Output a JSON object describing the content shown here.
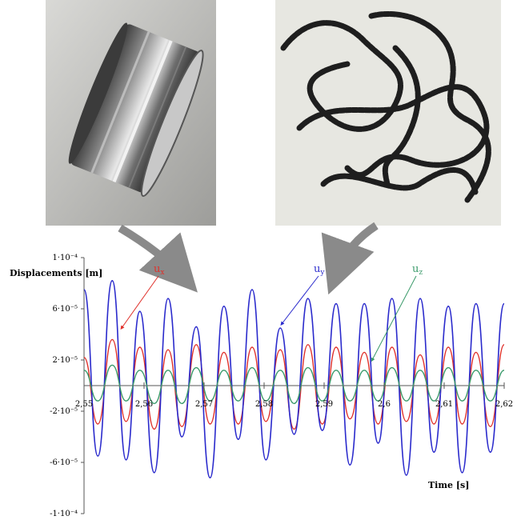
{
  "photos": {
    "left": {
      "description_icon": "machined-cylindrical-workpiece-photo"
    },
    "right": {
      "description_icon": "metal-chips-photo"
    }
  },
  "colors": {
    "ux": "#e0302a",
    "uy": "#2a2acc",
    "uz": "#3a9a6a",
    "axis": "#555555",
    "arrow": "#8a8a8a"
  },
  "chart_data": {
    "type": "line",
    "ylabel": "Displacements [m]",
    "xlabel": "Time  [s]",
    "xlim": [
      2.55,
      2.62
    ],
    "ylim": [
      -0.0001,
      0.0001
    ],
    "x_ticks": [
      "2,55",
      "2,56",
      "2,57",
      "2,58",
      "2,59",
      "2,6",
      "2,61",
      "2,62"
    ],
    "y_ticks": [
      "1·10⁻⁴",
      "6·10⁻⁵",
      "2·10⁻⁵",
      "-2·10⁻⁵",
      "-6·10⁻⁵",
      "-1·10⁻⁴"
    ],
    "y_tick_values": [
      0.0001,
      6e-05,
      2e-05,
      -2e-05,
      -6e-05,
      -0.0001
    ],
    "grid": false,
    "series": [
      {
        "name": "ux",
        "label_main": "u",
        "label_sub": "x",
        "color": "#e0302a",
        "x": [
          2.55,
          2.5523,
          2.5547,
          2.557,
          2.5593,
          2.5617,
          2.564,
          2.5663,
          2.5687,
          2.571,
          2.5733,
          2.5757,
          2.578,
          2.5803,
          2.5827,
          2.585,
          2.5873,
          2.5897,
          2.592,
          2.5943,
          2.5967,
          2.599,
          2.6013,
          2.6037,
          2.606,
          2.6083,
          2.6107,
          2.613,
          2.6153,
          2.6177,
          2.62
        ],
        "y": [
          2.2e-05,
          -3e-05,
          3.6e-05,
          -2.8e-05,
          3e-05,
          -3.4e-05,
          2.8e-05,
          -3.2e-05,
          3.2e-05,
          -3e-05,
          2.6e-05,
          -3e-05,
          3e-05,
          -2.8e-05,
          2.8e-05,
          -3.4e-05,
          3.2e-05,
          -3e-05,
          3e-05,
          -2.6e-05,
          2.6e-05,
          -3e-05,
          3e-05,
          -2.8e-05,
          2.4e-05,
          -3e-05,
          3e-05,
          -3e-05,
          2.6e-05,
          -3.2e-05,
          3.2e-05
        ]
      },
      {
        "name": "uy",
        "label_main": "u",
        "label_sub": "y",
        "color": "#2a2acc",
        "x": [
          2.55,
          2.5523,
          2.5547,
          2.557,
          2.5593,
          2.5617,
          2.564,
          2.5663,
          2.5687,
          2.571,
          2.5733,
          2.5757,
          2.578,
          2.5803,
          2.5827,
          2.585,
          2.5873,
          2.5897,
          2.592,
          2.5943,
          2.5967,
          2.599,
          2.6013,
          2.6037,
          2.606,
          2.6083,
          2.6107,
          2.613,
          2.6153,
          2.6177,
          2.62
        ],
        "y": [
          7.5e-05,
          -5.5e-05,
          8.2e-05,
          -5.8e-05,
          5.8e-05,
          -6.8e-05,
          6.8e-05,
          -4e-05,
          4.6e-05,
          -7.2e-05,
          6.2e-05,
          -4.2e-05,
          7.5e-05,
          -5.8e-05,
          4.5e-05,
          -3.8e-05,
          6.8e-05,
          -3.5e-05,
          6.4e-05,
          -6.2e-05,
          6.4e-05,
          -4.5e-05,
          6.8e-05,
          -7e-05,
          6.8e-05,
          -5.2e-05,
          6.2e-05,
          -6.8e-05,
          6.4e-05,
          -5.2e-05,
          6.4e-05
        ]
      },
      {
        "name": "uz",
        "label_main": "u",
        "label_sub": "z",
        "color": "#3a9a6a",
        "x": [
          2.55,
          2.5523,
          2.5547,
          2.557,
          2.5593,
          2.5617,
          2.564,
          2.5663,
          2.5687,
          2.571,
          2.5733,
          2.5757,
          2.578,
          2.5803,
          2.5827,
          2.585,
          2.5873,
          2.5897,
          2.592,
          2.5943,
          2.5967,
          2.599,
          2.6013,
          2.6037,
          2.606,
          2.6083,
          2.6107,
          2.613,
          2.6153,
          2.6177,
          2.62
        ],
        "y": [
          1.2e-05,
          -1.2e-05,
          1.6e-05,
          -1.2e-05,
          1.2e-05,
          -1.4e-05,
          1.2e-05,
          -1.4e-05,
          1.4e-05,
          -1.2e-05,
          1.2e-05,
          -1.2e-05,
          1.4e-05,
          -1.2e-05,
          1.2e-05,
          -1.4e-05,
          1.4e-05,
          -1.2e-05,
          1.2e-05,
          -1.2e-05,
          1.2e-05,
          -1.2e-05,
          1.4e-05,
          -1.2e-05,
          1.2e-05,
          -1.2e-05,
          1.4e-05,
          -1.2e-05,
          1.2e-05,
          -1.2e-05,
          1.2e-05
        ]
      }
    ]
  }
}
